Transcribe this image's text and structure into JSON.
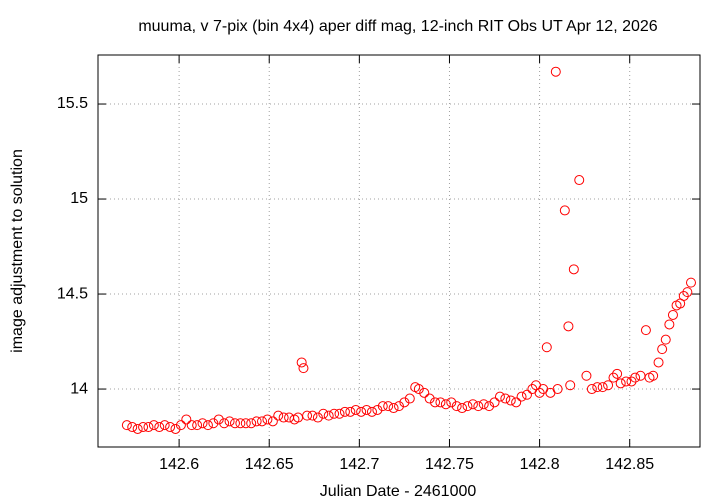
{
  "chart_data": {
    "type": "scatter",
    "title": "muuma, v 7-pix (bin 4x4) aper diff mag,  12-inch RIT Obs UT Apr 12, 2026",
    "x_label": "Julian Date - 2461000",
    "y_label": "image adjustment to solution",
    "xlim": [
      142.555,
      142.889
    ],
    "ylim": [
      13.695,
      15.758
    ],
    "xticks": [
      142.6,
      142.65,
      142.7,
      142.75,
      142.8,
      142.85
    ],
    "yticks": [
      14,
      14.5,
      15,
      15.5
    ],
    "grid": true,
    "series": [
      {
        "color": "#ff0000",
        "x": [
          142.571,
          142.574,
          142.577,
          142.58,
          142.583,
          142.586,
          142.589,
          142.592,
          142.595,
          142.598,
          142.601,
          142.604,
          142.607,
          142.61,
          142.613,
          142.616,
          142.619,
          142.622,
          142.625,
          142.628,
          142.631,
          142.634,
          142.637,
          142.64,
          142.643,
          142.646,
          142.649,
          142.652,
          142.655,
          142.658,
          142.661,
          142.664,
          142.666,
          142.668,
          142.669,
          142.671,
          142.674,
          142.677,
          142.68,
          142.683,
          142.686,
          142.689,
          142.692,
          142.695,
          142.698,
          142.701,
          142.704,
          142.707,
          142.71,
          142.713,
          142.716,
          142.719,
          142.722,
          142.725,
          142.728,
          142.731,
          142.733,
          142.736,
          142.739,
          142.742,
          142.745,
          142.748,
          142.751,
          142.754,
          142.757,
          142.76,
          142.763,
          142.766,
          142.769,
          142.772,
          142.775,
          142.778,
          142.781,
          142.784,
          142.787,
          142.79,
          142.793,
          142.796,
          142.798,
          142.8,
          142.802,
          142.804,
          142.806,
          142.809,
          142.81,
          142.814,
          142.816,
          142.817,
          142.819,
          142.822,
          142.826,
          142.829,
          142.832,
          142.835,
          142.838,
          142.841,
          142.843,
          142.845,
          142.848,
          142.851,
          142.853,
          142.856,
          142.859,
          142.861,
          142.863,
          142.866,
          142.868,
          142.87,
          142.872,
          142.874,
          142.876,
          142.878,
          142.88,
          142.882,
          142.884
        ],
        "values": [
          13.81,
          13.8,
          13.79,
          13.8,
          13.8,
          13.81,
          13.8,
          13.81,
          13.8,
          13.79,
          13.81,
          13.84,
          13.81,
          13.81,
          13.82,
          13.81,
          13.82,
          13.84,
          13.82,
          13.83,
          13.82,
          13.82,
          13.82,
          13.82,
          13.83,
          13.83,
          13.84,
          13.83,
          13.86,
          13.85,
          13.85,
          13.84,
          13.85,
          14.14,
          14.11,
          13.86,
          13.86,
          13.85,
          13.87,
          13.86,
          13.87,
          13.87,
          13.88,
          13.88,
          13.89,
          13.88,
          13.89,
          13.88,
          13.89,
          13.91,
          13.91,
          13.9,
          13.91,
          13.93,
          13.95,
          14.01,
          14.0,
          13.98,
          13.95,
          13.93,
          13.93,
          13.92,
          13.93,
          13.91,
          13.9,
          13.91,
          13.92,
          13.91,
          13.92,
          13.91,
          13.93,
          13.96,
          13.95,
          13.94,
          13.93,
          13.96,
          13.97,
          14.0,
          14.02,
          13.98,
          14.0,
          14.22,
          13.98,
          15.67,
          14.0,
          14.94,
          14.33,
          14.02,
          14.63,
          15.1,
          14.07,
          14.0,
          14.01,
          14.01,
          14.02,
          14.06,
          14.08,
          14.03,
          14.04,
          14.04,
          14.06,
          14.07,
          14.31,
          14.06,
          14.07,
          14.14,
          14.21,
          14.26,
          14.34,
          14.39,
          14.44,
          14.45,
          14.49,
          14.51,
          14.56
        ]
      }
    ]
  }
}
